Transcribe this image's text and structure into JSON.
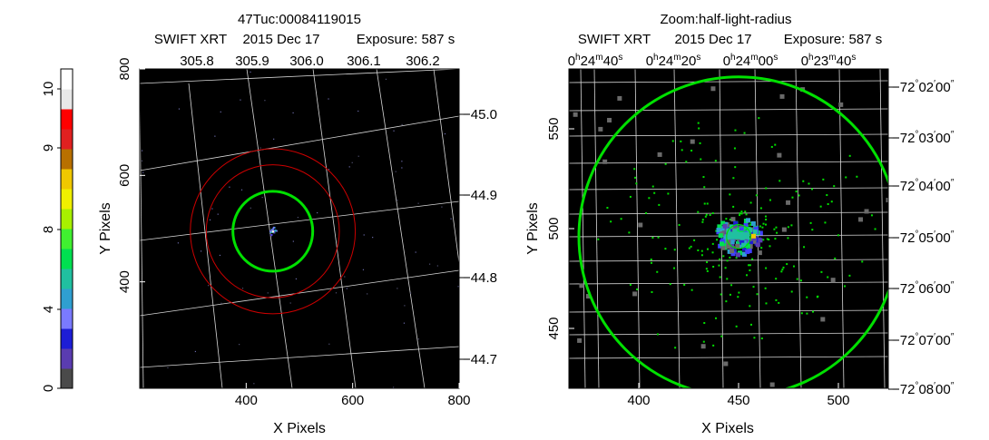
{
  "colorbar": {
    "ticks": [
      "0",
      "4",
      "8",
      "9",
      "10"
    ],
    "tick_values": [
      0,
      4,
      8,
      9,
      10
    ],
    "colors": [
      "#4a4a4a",
      "#5a3cb0",
      "#1d1dd6",
      "#7a7aff",
      "#2f9fd0",
      "#20c0a0",
      "#00e050",
      "#40f030",
      "#a8f000",
      "#f0f000",
      "#f0c800",
      "#b87000",
      "#e02020",
      "#ff0000",
      "#e8e8e8",
      "#ffffff"
    ]
  },
  "panels": [
    {
      "title_line1": "47Tuc:00084119015",
      "title_line2_parts": [
        "SWIFT XRT",
        "2015 Dec 17",
        "Exposure: 587 s"
      ]
    },
    {
      "title_line1": "Zoom:half-light-radius",
      "title_line2_parts": [
        "SWIFT XRT",
        "2015 Dec 17",
        "Exposure: 587 s"
      ]
    }
  ],
  "chart_data": [
    {
      "type": "scatter",
      "title": "47Tuc:00084119015",
      "subtitle": "SWIFT XRT 2015 Dec 17 Exposure: 587 s",
      "xlabel": "X Pixels",
      "ylabel": "Y Pixels",
      "xlim": [
        200,
        800
      ],
      "ylim": [
        200,
        800
      ],
      "x_ticks": [
        400,
        600,
        800
      ],
      "y_ticks": [
        400,
        600,
        800
      ],
      "top_axis_ticks": [
        "305.8",
        "305.9",
        "306.0",
        "306.1",
        "306.2"
      ],
      "right_axis_ticks": [
        "−45.0",
        "−44.9",
        "−44.8",
        "−44.7"
      ],
      "circles": [
        {
          "x": 450,
          "y": 495,
          "r": 75,
          "color": "#00e000"
        },
        {
          "x": 450,
          "y": 495,
          "r": 125,
          "color": "#cc0000"
        },
        {
          "x": 450,
          "y": 495,
          "r": 155,
          "color": "#cc0000"
        }
      ],
      "source": {
        "x": 450,
        "y": 495
      }
    },
    {
      "type": "scatter",
      "title": "Zoom:half-light-radius",
      "subtitle": "SWIFT XRT 2015 Dec 17 Exposure: 587 s",
      "xlabel": "X Pixels",
      "ylabel": "Y Pixels",
      "xlim": [
        365,
        525
      ],
      "ylim": [
        420,
        580
      ],
      "x_ticks": [
        400,
        450,
        500
      ],
      "y_ticks": [
        450,
        500,
        550
      ],
      "top_axis_ticks": [
        {
          "h": "0",
          "m": "24",
          "s": "40"
        },
        {
          "h": "0",
          "m": "24",
          "s": "20"
        },
        {
          "h": "0",
          "m": "24",
          "s": "00"
        },
        {
          "h": "0",
          "m": "23",
          "s": "40"
        }
      ],
      "right_axis_ticks": [
        {
          "d": "−72",
          "m": "02",
          "s": "00"
        },
        {
          "d": "−72",
          "m": "03",
          "s": "00"
        },
        {
          "d": "−72",
          "m": "04",
          "s": "00"
        },
        {
          "d": "−72",
          "m": "05",
          "s": "00"
        },
        {
          "d": "−72",
          "m": "06",
          "s": "00"
        },
        {
          "d": "−72",
          "m": "07",
          "s": "00"
        },
        {
          "d": "−72",
          "m": "08",
          "s": "00"
        }
      ],
      "circles": [
        {
          "x": 450,
          "y": 496,
          "r": 80,
          "color": "#00e000"
        },
        {
          "x": 450,
          "y": 496,
          "r": 6,
          "color": "#00e000"
        }
      ],
      "source": {
        "x": 450,
        "y": 496
      }
    }
  ]
}
